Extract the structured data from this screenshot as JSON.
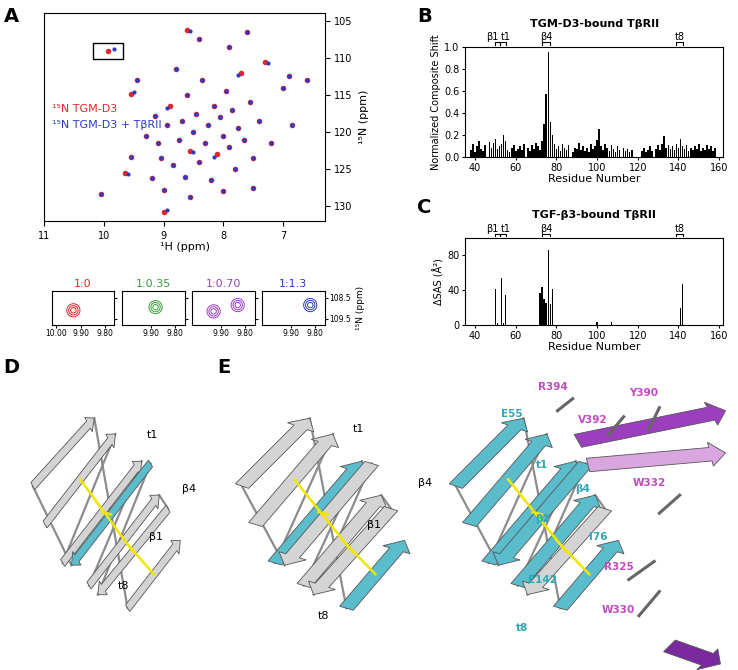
{
  "chart_data": [
    {
      "panel": "A",
      "type": "scatter",
      "xlabel": "¹H (ppm)",
      "ylabel": "¹⁵N (ppm)",
      "xlim": [
        11,
        6.3
      ],
      "ylim": [
        132,
        104
      ],
      "xticks": [
        11,
        10,
        9,
        8,
        7
      ],
      "yticks": [
        105,
        110,
        115,
        120,
        125,
        130
      ],
      "legend": "center left",
      "series": [
        {
          "name": "¹⁵N TGM-D3",
          "color": "#e3262b",
          "marker": "o",
          "x": [
            9.93,
            10.05,
            9.65,
            9.55,
            9.3,
            9.15,
            9.2,
            9.1,
            9.0,
            9.05,
            8.95,
            8.9,
            8.85,
            8.8,
            8.75,
            8.7,
            8.65,
            8.6,
            8.55,
            8.5,
            8.45,
            8.4,
            8.35,
            8.3,
            8.25,
            8.2,
            8.15,
            8.1,
            8.05,
            8.0,
            7.95,
            7.9,
            7.85,
            7.8,
            7.75,
            7.7,
            7.65,
            7.55,
            7.5,
            7.4,
            7.3,
            7.2,
            7.0,
            6.9,
            6.85,
            6.6,
            8.6,
            8.4,
            7.9,
            7.6,
            9.0,
            8.55,
            8.0,
            7.5,
            9.45,
            9.55
          ],
          "y": [
            109.1,
            128.4,
            125.5,
            123.3,
            120.5,
            117.8,
            126.2,
            121.5,
            127.8,
            123.5,
            119.0,
            116.5,
            124.5,
            111.5,
            121.0,
            118.5,
            126.0,
            115.0,
            122.5,
            120.0,
            117.5,
            124.0,
            113.0,
            121.5,
            119.0,
            126.5,
            116.5,
            123.0,
            118.0,
            120.5,
            114.5,
            122.0,
            117.0,
            125.0,
            119.5,
            112.0,
            121.0,
            116.0,
            123.5,
            118.5,
            110.5,
            121.5,
            114.0,
            112.5,
            119.0,
            113.0,
            106.2,
            107.5,
            108.5,
            106.5,
            130.8,
            128.7,
            128.0,
            127.5,
            113.0,
            114.8
          ]
        },
        {
          "name": "¹⁵N TGM-D3 + TβRII",
          "color": "#2b3cc4",
          "marker": "o",
          "x": [
            9.83,
            10.05,
            9.6,
            9.55,
            9.3,
            9.15,
            9.2,
            9.1,
            9.0,
            9.05,
            8.95,
            8.95,
            8.85,
            8.8,
            8.75,
            8.7,
            8.65,
            8.6,
            8.5,
            8.5,
            8.45,
            8.4,
            8.35,
            8.3,
            8.25,
            8.2,
            8.15,
            8.15,
            8.05,
            8.0,
            7.95,
            7.9,
            7.85,
            7.8,
            7.75,
            7.75,
            7.65,
            7.55,
            7.5,
            7.4,
            7.25,
            7.2,
            7.0,
            6.9,
            6.85,
            6.6,
            8.55,
            8.4,
            7.9,
            7.6,
            8.95,
            8.55,
            8.0,
            7.5,
            9.45,
            9.5
          ],
          "y": [
            108.85,
            128.4,
            125.7,
            123.3,
            120.5,
            117.8,
            126.2,
            121.5,
            127.8,
            123.5,
            119.0,
            116.8,
            124.5,
            111.5,
            121.0,
            118.5,
            126.0,
            115.0,
            122.7,
            120.0,
            117.5,
            124.0,
            113.0,
            121.5,
            119.0,
            126.5,
            116.5,
            123.3,
            118.0,
            120.5,
            114.5,
            122.0,
            117.0,
            125.0,
            119.5,
            112.3,
            121.0,
            116.0,
            123.5,
            118.5,
            110.7,
            121.5,
            114.0,
            112.5,
            119.0,
            113.0,
            106.4,
            107.5,
            108.5,
            106.5,
            130.5,
            128.7,
            128.0,
            127.5,
            113.0,
            114.6
          ]
        }
      ]
    },
    {
      "type": "scatter",
      "ylabel": "¹⁵N (ppm)",
      "xlim": [
        10.02,
        9.76
      ],
      "ylim": [
        109.8,
        108.2
      ],
      "yticks": [
        108.5,
        109.5
      ],
      "panels": [
        {
          "title": "1:0",
          "color": "#e3262b",
          "x": [
            9.93
          ],
          "y": [
            109.1
          ],
          "xticks": [
            {
              "value": 10.0,
              "label": "10.00"
            },
            {
              "value": 9.9,
              "label": "9.90"
            },
            {
              "value": 9.8,
              "label": "9.80"
            }
          ]
        },
        {
          "title": "1:0.35",
          "color": "#3a9d3a",
          "x": [
            9.88
          ],
          "y": [
            108.95
          ],
          "xticks": [
            {
              "value": 9.9,
              "label": "9.90"
            },
            {
              "value": 9.8,
              "label": "9.80"
            }
          ]
        },
        {
          "title": "1:0.70",
          "color": "#9b3fbf",
          "x": [
            9.83,
            9.93
          ],
          "y": [
            108.85,
            109.15
          ],
          "xticks": [
            {
              "value": 9.9,
              "label": "9.90"
            },
            {
              "value": 9.8,
              "label": "9.80"
            }
          ]
        },
        {
          "title": "1:1.3",
          "color": "#2b3cc4",
          "x": [
            9.82
          ],
          "y": [
            108.85
          ],
          "xticks": [
            {
              "value": 9.9,
              "label": "9.90"
            },
            {
              "value": 9.8,
              "label": "9.80"
            }
          ]
        }
      ]
    },
    {
      "panel": "B",
      "type": "bar",
      "title": "TGM-D3-bound TβRII",
      "xlabel": "Residue Number",
      "ylabel": "Normalized Composite Shift",
      "color": "#000000",
      "x": [
        38,
        39,
        40,
        41,
        42,
        43,
        44,
        45,
        47,
        48,
        49,
        50,
        51,
        52,
        53,
        54,
        55,
        56,
        57,
        58,
        59,
        60,
        61,
        62,
        63,
        64,
        66,
        67,
        68,
        69,
        70,
        71,
        72,
        73,
        74,
        75,
        76,
        77,
        78,
        79,
        80,
        81,
        82,
        83,
        84,
        85,
        86,
        88,
        89,
        90,
        91,
        92,
        93,
        94,
        95,
        96,
        97,
        98,
        99,
        100,
        101,
        102,
        103,
        104,
        105,
        106,
        107,
        108,
        109,
        110,
        111,
        113,
        114,
        115,
        116,
        117,
        122,
        123,
        124,
        125,
        126,
        127,
        129,
        130,
        131,
        132,
        133,
        134,
        135,
        136,
        137,
        138,
        139,
        140,
        141,
        142,
        143,
        144,
        145,
        146,
        147,
        148,
        149,
        150,
        151,
        152,
        153,
        154,
        155,
        156,
        157,
        158
      ],
      "values": [
        0.07,
        0.12,
        0.05,
        0.1,
        0.15,
        0.08,
        0.06,
        0.11,
        0.14,
        0.09,
        0.13,
        0.17,
        0.08,
        0.1,
        0.12,
        0.2,
        0.15,
        0.07,
        0.05,
        0.09,
        0.11,
        0.06,
        0.08,
        0.1,
        0.07,
        0.12,
        0.09,
        0.06,
        0.11,
        0.08,
        0.13,
        0.1,
        0.07,
        0.15,
        0.3,
        0.57,
        0.95,
        0.32,
        0.2,
        0.12,
        0.08,
        0.1,
        0.06,
        0.12,
        0.09,
        0.07,
        0.11,
        0.05,
        0.09,
        0.08,
        0.13,
        0.07,
        0.1,
        0.06,
        0.09,
        0.05,
        0.12,
        0.08,
        0.1,
        0.16,
        0.26,
        0.1,
        0.07,
        0.12,
        0.09,
        0.06,
        0.11,
        0.08,
        0.05,
        0.1,
        0.07,
        0.09,
        0.06,
        0.08,
        0.05,
        0.07,
        0.06,
        0.09,
        0.05,
        0.07,
        0.1,
        0.06,
        0.08,
        0.11,
        0.07,
        0.12,
        0.19,
        0.09,
        0.11,
        0.08,
        0.1,
        0.07,
        0.12,
        0.09,
        0.17,
        0.1,
        0.08,
        0.11,
        0.06,
        0.09,
        0.07,
        0.1,
        0.08,
        0.12,
        0.06,
        0.09,
        0.07,
        0.11,
        0.08,
        0.1,
        0.06,
        0.09
      ],
      "xlim": [
        35,
        162
      ],
      "ylim": [
        0,
        1
      ],
      "xticks": [
        40,
        60,
        80,
        100,
        120,
        140,
        160
      ],
      "yticks": [
        {
          "value": 0,
          "label": "0.0"
        },
        {
          "value": 0.2,
          "label": "0.2"
        },
        {
          "value": 0.4,
          "label": "0.4"
        },
        {
          "value": 0.6,
          "label": "0.6"
        },
        {
          "value": 0.8,
          "label": "0.8"
        },
        {
          "value": 1,
          "label": "1.0"
        }
      ],
      "annotations": [
        {
          "label": "β1",
          "start": 50,
          "end": 52
        },
        {
          "label": "t1",
          "start": 52,
          "end": 55
        },
        {
          "label": "β4",
          "start": 73,
          "end": 77
        },
        {
          "label": "t8",
          "start": 139,
          "end": 142
        }
      ]
    },
    {
      "panel": "C",
      "type": "bar",
      "title": "TGF-β3-bound TβRII",
      "xlabel": "Residue Number",
      "ylabel": "ΔSAS (Å²)",
      "color": "#000000",
      "x": [
        50,
        51,
        53,
        54,
        55,
        72,
        73,
        74,
        75,
        76,
        77,
        78,
        100,
        107,
        141,
        142
      ],
      "values": [
        41,
        2,
        54,
        2,
        34,
        37,
        44,
        30,
        25,
        86,
        24,
        41,
        3,
        3,
        20,
        47
      ],
      "xlim": [
        35,
        162
      ],
      "ylim": [
        0,
        100
      ],
      "xticks": [
        40,
        60,
        80,
        100,
        120,
        140,
        160
      ],
      "yticks": [
        0,
        40,
        80
      ],
      "annotations": [
        {
          "label": "β1",
          "start": 50,
          "end": 52
        },
        {
          "label": "t1",
          "start": 52,
          "end": 55
        },
        {
          "label": "β4",
          "start": 73,
          "end": 77
        },
        {
          "label": "t8",
          "start": 139,
          "end": 142
        }
      ]
    }
  ],
  "structures": [
    {
      "panel": "D",
      "labels": [
        "t1",
        "β4",
        "β1",
        "t8"
      ]
    },
    {
      "panel": "E",
      "left_labels": [
        "t1",
        "β4",
        "β1",
        "t8"
      ],
      "right_labels": [
        {
          "text": "E55",
          "color": "#2aa9b8"
        },
        {
          "text": "R394",
          "color": "#c04ac0"
        },
        {
          "text": "V392",
          "color": "#c04ac0"
        },
        {
          "text": "Y390",
          "color": "#c04ac0"
        },
        {
          "text": "t1",
          "color": "#2aa9b8"
        },
        {
          "text": "β4",
          "color": "#2aa9b8"
        },
        {
          "text": "W332",
          "color": "#c04ac0"
        },
        {
          "text": "β1",
          "color": "#2aa9b8"
        },
        {
          "text": "I76",
          "color": "#2aa9b8"
        },
        {
          "text": "R325",
          "color": "#c04ac0"
        },
        {
          "text": "E142",
          "color": "#2aa9b8"
        },
        {
          "text": "W330",
          "color": "#c04ac0"
        },
        {
          "text": "t8",
          "color": "#2aa9b8"
        }
      ]
    }
  ]
}
